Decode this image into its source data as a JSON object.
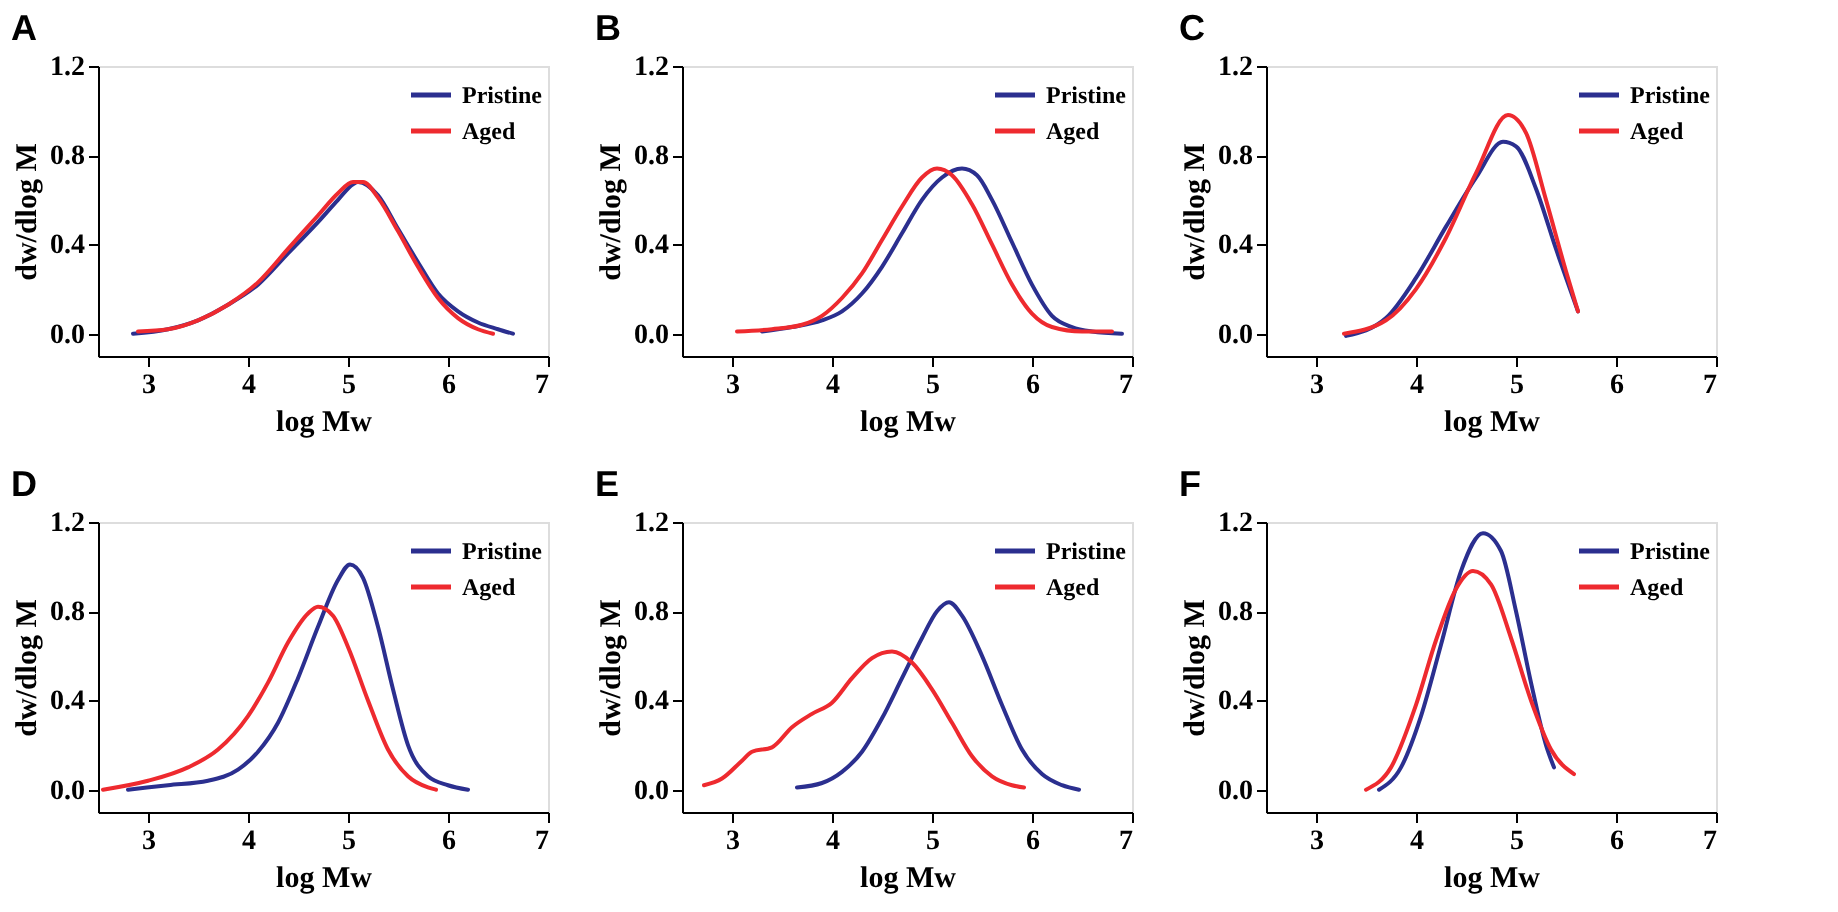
{
  "chart_data": [
    {
      "type": "line",
      "title": "A",
      "xlabel": "log Mw",
      "ylabel": "dw/dlog M",
      "xlim": [
        2.5,
        7
      ],
      "xticks": [
        3,
        4,
        5,
        6,
        7
      ],
      "ylim": [
        -0.1,
        1.2
      ],
      "yticks": [
        {
          "value": 0,
          "label": "0.0"
        },
        {
          "value": 0.4,
          "label": "0.4"
        },
        {
          "value": 0.8,
          "label": "0.8"
        },
        {
          "value": 1.2,
          "label": "1.2"
        }
      ],
      "legend": "top right",
      "grid": false,
      "series": [
        {
          "name": "Pristine",
          "color": "#2b2f8f",
          "x": [
            2.85,
            3.2,
            3.5,
            3.8,
            4.1,
            4.4,
            4.7,
            4.9,
            5.05,
            5.1,
            5.3,
            5.5,
            5.7,
            5.9,
            6.1,
            6.3,
            6.5,
            6.65
          ],
          "values": [
            0,
            0.02,
            0.06,
            0.13,
            0.22,
            0.36,
            0.5,
            0.6,
            0.67,
            0.68,
            0.62,
            0.47,
            0.32,
            0.18,
            0.1,
            0.05,
            0.02,
            0
          ]
        },
        {
          "name": "Aged",
          "color": "#ee2a2f",
          "x": [
            2.9,
            3.2,
            3.5,
            3.8,
            4.1,
            4.4,
            4.7,
            4.9,
            5.05,
            5.15,
            5.3,
            5.5,
            5.7,
            5.9,
            6.1,
            6.3,
            6.45
          ],
          "values": [
            0.01,
            0.02,
            0.06,
            0.13,
            0.23,
            0.38,
            0.53,
            0.63,
            0.68,
            0.68,
            0.61,
            0.46,
            0.3,
            0.16,
            0.07,
            0.02,
            0
          ]
        }
      ]
    },
    {
      "type": "line",
      "title": "B",
      "xlabel": "log Mw",
      "ylabel": "dw/dlog M",
      "xlim": [
        2.5,
        7
      ],
      "xticks": [
        3,
        4,
        5,
        6,
        7
      ],
      "ylim": [
        -0.1,
        1.2
      ],
      "yticks": [
        {
          "value": 0,
          "label": "0.0"
        },
        {
          "value": 0.4,
          "label": "0.4"
        },
        {
          "value": 0.8,
          "label": "0.8"
        },
        {
          "value": 1.2,
          "label": "1.2"
        }
      ],
      "legend": "top right",
      "grid": false,
      "series": [
        {
          "name": "Pristine",
          "color": "#2b2f8f",
          "x": [
            3.3,
            3.6,
            3.9,
            4.1,
            4.3,
            4.5,
            4.7,
            4.9,
            5.1,
            5.3,
            5.45,
            5.6,
            5.8,
            6.0,
            6.2,
            6.4,
            6.6,
            6.9
          ],
          "values": [
            0.01,
            0.03,
            0.06,
            0.1,
            0.18,
            0.3,
            0.45,
            0.6,
            0.7,
            0.74,
            0.71,
            0.6,
            0.41,
            0.22,
            0.08,
            0.03,
            0.01,
            0
          ]
        },
        {
          "name": "Aged",
          "color": "#ee2a2f",
          "x": [
            3.05,
            3.4,
            3.7,
            3.9,
            4.1,
            4.3,
            4.5,
            4.7,
            4.9,
            5.05,
            5.2,
            5.4,
            5.6,
            5.8,
            6.0,
            6.2,
            6.5,
            6.8
          ],
          "values": [
            0.01,
            0.02,
            0.04,
            0.08,
            0.16,
            0.27,
            0.42,
            0.57,
            0.7,
            0.74,
            0.71,
            0.58,
            0.4,
            0.22,
            0.09,
            0.03,
            0.01,
            0.01
          ]
        }
      ]
    },
    {
      "type": "line",
      "title": "C",
      "xlabel": "log Mw",
      "ylabel": "dw/dlog M",
      "xlim": [
        2.5,
        7
      ],
      "xticks": [
        3,
        4,
        5,
        6,
        7
      ],
      "ylim": [
        -0.1,
        1.2
      ],
      "yticks": [
        {
          "value": 0,
          "label": "0.0"
        },
        {
          "value": 0.4,
          "label": "0.4"
        },
        {
          "value": 0.8,
          "label": "0.8"
        },
        {
          "value": 1.2,
          "label": "1.2"
        }
      ],
      "legend": "top right",
      "grid": false,
      "series": [
        {
          "name": "Pristine",
          "color": "#2b2f8f",
          "x": [
            3.3,
            3.7,
            4.0,
            4.3,
            4.6,
            4.87,
            5.0,
            5.2,
            5.4,
            5.62
          ],
          "values": [
            -0.01,
            0.07,
            0.25,
            0.48,
            0.7,
            0.86,
            0.84,
            0.65,
            0.38,
            0.1
          ]
        },
        {
          "name": "Aged",
          "color": "#ee2a2f",
          "x": [
            3.28,
            3.7,
            4.0,
            4.3,
            4.6,
            4.92,
            5.1,
            5.3,
            5.5,
            5.62
          ],
          "values": [
            0,
            0.06,
            0.2,
            0.43,
            0.72,
            0.98,
            0.9,
            0.6,
            0.28,
            0.1
          ]
        }
      ]
    },
    {
      "type": "line",
      "title": "D",
      "xlabel": "log Mw",
      "ylabel": "dw/dlog M",
      "xlim": [
        2.5,
        7
      ],
      "xticks": [
        3,
        4,
        5,
        6,
        7
      ],
      "ylim": [
        -0.1,
        1.2
      ],
      "yticks": [
        {
          "value": 0,
          "label": "0.0"
        },
        {
          "value": 0.4,
          "label": "0.4"
        },
        {
          "value": 0.8,
          "label": "0.8"
        },
        {
          "value": 1.2,
          "label": "1.2"
        }
      ],
      "legend": "top right",
      "grid": false,
      "series": [
        {
          "name": "Pristine",
          "color": "#2b2f8f",
          "x": [
            2.8,
            3.2,
            3.6,
            3.9,
            4.1,
            4.3,
            4.5,
            4.7,
            4.9,
            5.02,
            5.15,
            5.3,
            5.45,
            5.6,
            5.8,
            6.0,
            6.2
          ],
          "values": [
            0,
            0.02,
            0.04,
            0.09,
            0.17,
            0.3,
            0.5,
            0.73,
            0.94,
            1.01,
            0.95,
            0.73,
            0.45,
            0.2,
            0.06,
            0.02,
            0
          ]
        },
        {
          "name": "Aged",
          "color": "#ee2a2f",
          "x": [
            2.55,
            3.0,
            3.4,
            3.7,
            4.0,
            4.2,
            4.4,
            4.6,
            4.7,
            4.85,
            5.0,
            5.2,
            5.4,
            5.6,
            5.8,
            5.88
          ],
          "values": [
            0,
            0.04,
            0.1,
            0.18,
            0.33,
            0.48,
            0.66,
            0.79,
            0.82,
            0.78,
            0.64,
            0.4,
            0.18,
            0.06,
            0.01,
            0
          ]
        }
      ]
    },
    {
      "type": "line",
      "title": "E",
      "xlabel": "log Mw",
      "ylabel": "dw/dlog M",
      "xlim": [
        2.5,
        7
      ],
      "xticks": [
        3,
        4,
        5,
        6,
        7
      ],
      "ylim": [
        -0.1,
        1.2
      ],
      "yticks": [
        {
          "value": 0,
          "label": "0.0"
        },
        {
          "value": 0.4,
          "label": "0.4"
        },
        {
          "value": 0.8,
          "label": "0.8"
        },
        {
          "value": 1.2,
          "label": "1.2"
        }
      ],
      "legend": "top right",
      "grid": false,
      "series": [
        {
          "name": "Pristine",
          "color": "#2b2f8f",
          "x": [
            3.65,
            3.9,
            4.1,
            4.3,
            4.5,
            4.7,
            4.9,
            5.05,
            5.17,
            5.3,
            5.5,
            5.7,
            5.9,
            6.1,
            6.3,
            6.47
          ],
          "values": [
            0.01,
            0.03,
            0.08,
            0.17,
            0.32,
            0.5,
            0.68,
            0.8,
            0.84,
            0.78,
            0.6,
            0.38,
            0.18,
            0.07,
            0.02,
            0
          ]
        },
        {
          "name": "Aged",
          "color": "#ee2a2f",
          "x": [
            2.72,
            2.9,
            3.1,
            3.2,
            3.4,
            3.6,
            3.8,
            4.0,
            4.2,
            4.4,
            4.6,
            4.8,
            5.0,
            5.2,
            5.4,
            5.6,
            5.8,
            5.92
          ],
          "values": [
            0.02,
            0.05,
            0.13,
            0.17,
            0.19,
            0.28,
            0.34,
            0.39,
            0.5,
            0.59,
            0.62,
            0.57,
            0.45,
            0.3,
            0.15,
            0.06,
            0.02,
            0.01
          ]
        }
      ]
    },
    {
      "type": "line",
      "title": "F",
      "xlabel": "log Mw",
      "ylabel": "dw/dlog M",
      "xlim": [
        2.5,
        7
      ],
      "xticks": [
        3,
        4,
        5,
        6,
        7
      ],
      "ylim": [
        -0.1,
        1.2
      ],
      "yticks": [
        {
          "value": 0,
          "label": "0.0"
        },
        {
          "value": 0.4,
          "label": "0.4"
        },
        {
          "value": 0.8,
          "label": "0.8"
        },
        {
          "value": 1.2,
          "label": "1.2"
        }
      ],
      "legend": "top right",
      "grid": false,
      "series": [
        {
          "name": "Pristine",
          "color": "#2b2f8f",
          "x": [
            3.63,
            3.85,
            4.05,
            4.25,
            4.45,
            4.67,
            4.85,
            5.0,
            5.15,
            5.3,
            5.38
          ],
          "values": [
            0,
            0.1,
            0.33,
            0.65,
            0.98,
            1.15,
            1.07,
            0.8,
            0.48,
            0.2,
            0.1
          ]
        },
        {
          "name": "Aged",
          "color": "#ee2a2f",
          "x": [
            3.5,
            3.75,
            4.0,
            4.2,
            4.4,
            4.57,
            4.75,
            4.95,
            5.15,
            5.35,
            5.58
          ],
          "values": [
            0,
            0.1,
            0.38,
            0.67,
            0.9,
            0.98,
            0.92,
            0.68,
            0.4,
            0.18,
            0.07
          ]
        }
      ]
    }
  ]
}
